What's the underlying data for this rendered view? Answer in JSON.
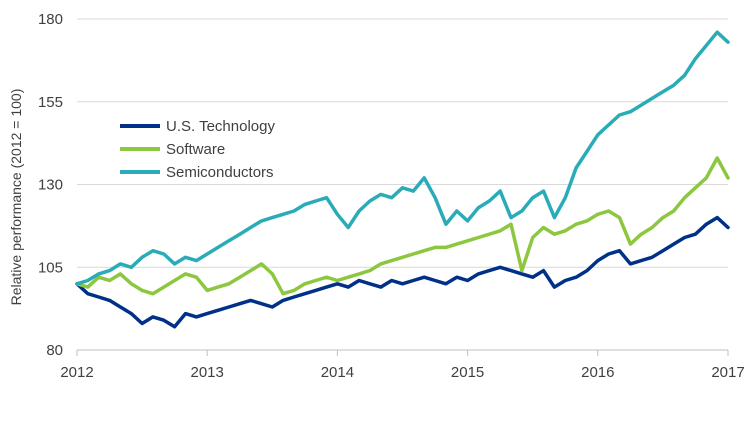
{
  "chart_data": {
    "type": "line",
    "title": "",
    "xlabel": "",
    "ylabel": "Relative performance (2012 = 100)",
    "xlim": [
      2012,
      2017
    ],
    "ylim": [
      80,
      180
    ],
    "x_ticks": [
      2012,
      2013,
      2014,
      2015,
      2016,
      2017
    ],
    "y_ticks": [
      80,
      105,
      130,
      155,
      180
    ],
    "grid": "horizontal",
    "legend_position": "left",
    "x": [
      2012.0,
      2012.083,
      2012.167,
      2012.25,
      2012.333,
      2012.417,
      2012.5,
      2012.583,
      2012.667,
      2012.75,
      2012.833,
      2012.917,
      2013.0,
      2013.083,
      2013.167,
      2013.25,
      2013.333,
      2013.417,
      2013.5,
      2013.583,
      2013.667,
      2013.75,
      2013.833,
      2013.917,
      2014.0,
      2014.083,
      2014.167,
      2014.25,
      2014.333,
      2014.417,
      2014.5,
      2014.583,
      2014.667,
      2014.75,
      2014.833,
      2014.917,
      2015.0,
      2015.083,
      2015.167,
      2015.25,
      2015.333,
      2015.417,
      2015.5,
      2015.583,
      2015.667,
      2015.75,
      2015.833,
      2015.917,
      2016.0,
      2016.083,
      2016.167,
      2016.25,
      2016.333,
      2016.417,
      2016.5,
      2016.583,
      2016.667,
      2016.75,
      2016.833,
      2016.917,
      2017.0
    ],
    "series": [
      {
        "name": "U.S. Technology",
        "color": "#003087",
        "values": [
          100,
          97,
          96,
          95,
          93,
          91,
          88,
          90,
          89,
          87,
          91,
          90,
          91,
          92,
          93,
          94,
          95,
          94,
          93,
          95,
          96,
          97,
          98,
          99,
          100,
          99,
          101,
          100,
          99,
          101,
          100,
          101,
          102,
          101,
          100,
          102,
          101,
          103,
          104,
          105,
          104,
          103,
          102,
          104,
          99,
          101,
          102,
          104,
          107,
          109,
          110,
          106,
          107,
          108,
          110,
          112,
          114,
          115,
          118,
          120,
          117
        ]
      },
      {
        "name": "Software",
        "color": "#8dc63f",
        "values": [
          100,
          99,
          102,
          101,
          103,
          100,
          98,
          97,
          99,
          101,
          103,
          102,
          98,
          99,
          100,
          102,
          104,
          106,
          103,
          97,
          98,
          100,
          101,
          102,
          101,
          102,
          103,
          104,
          106,
          107,
          108,
          109,
          110,
          111,
          111,
          112,
          113,
          114,
          115,
          116,
          118,
          104,
          114,
          117,
          115,
          116,
          118,
          119,
          121,
          122,
          120,
          112,
          115,
          117,
          120,
          122,
          126,
          129,
          132,
          138,
          132
        ]
      },
      {
        "name": "Semiconductors",
        "color": "#2aacb8",
        "values": [
          100,
          101,
          103,
          104,
          106,
          105,
          108,
          110,
          109,
          106,
          108,
          107,
          109,
          111,
          113,
          115,
          117,
          119,
          120,
          121,
          122,
          124,
          125,
          126,
          121,
          117,
          122,
          125,
          127,
          126,
          129,
          128,
          132,
          126,
          118,
          122,
          119,
          123,
          125,
          128,
          120,
          122,
          126,
          128,
          120,
          126,
          135,
          140,
          145,
          148,
          151,
          152,
          154,
          156,
          158,
          160,
          163,
          168,
          172,
          176,
          173
        ]
      }
    ]
  }
}
